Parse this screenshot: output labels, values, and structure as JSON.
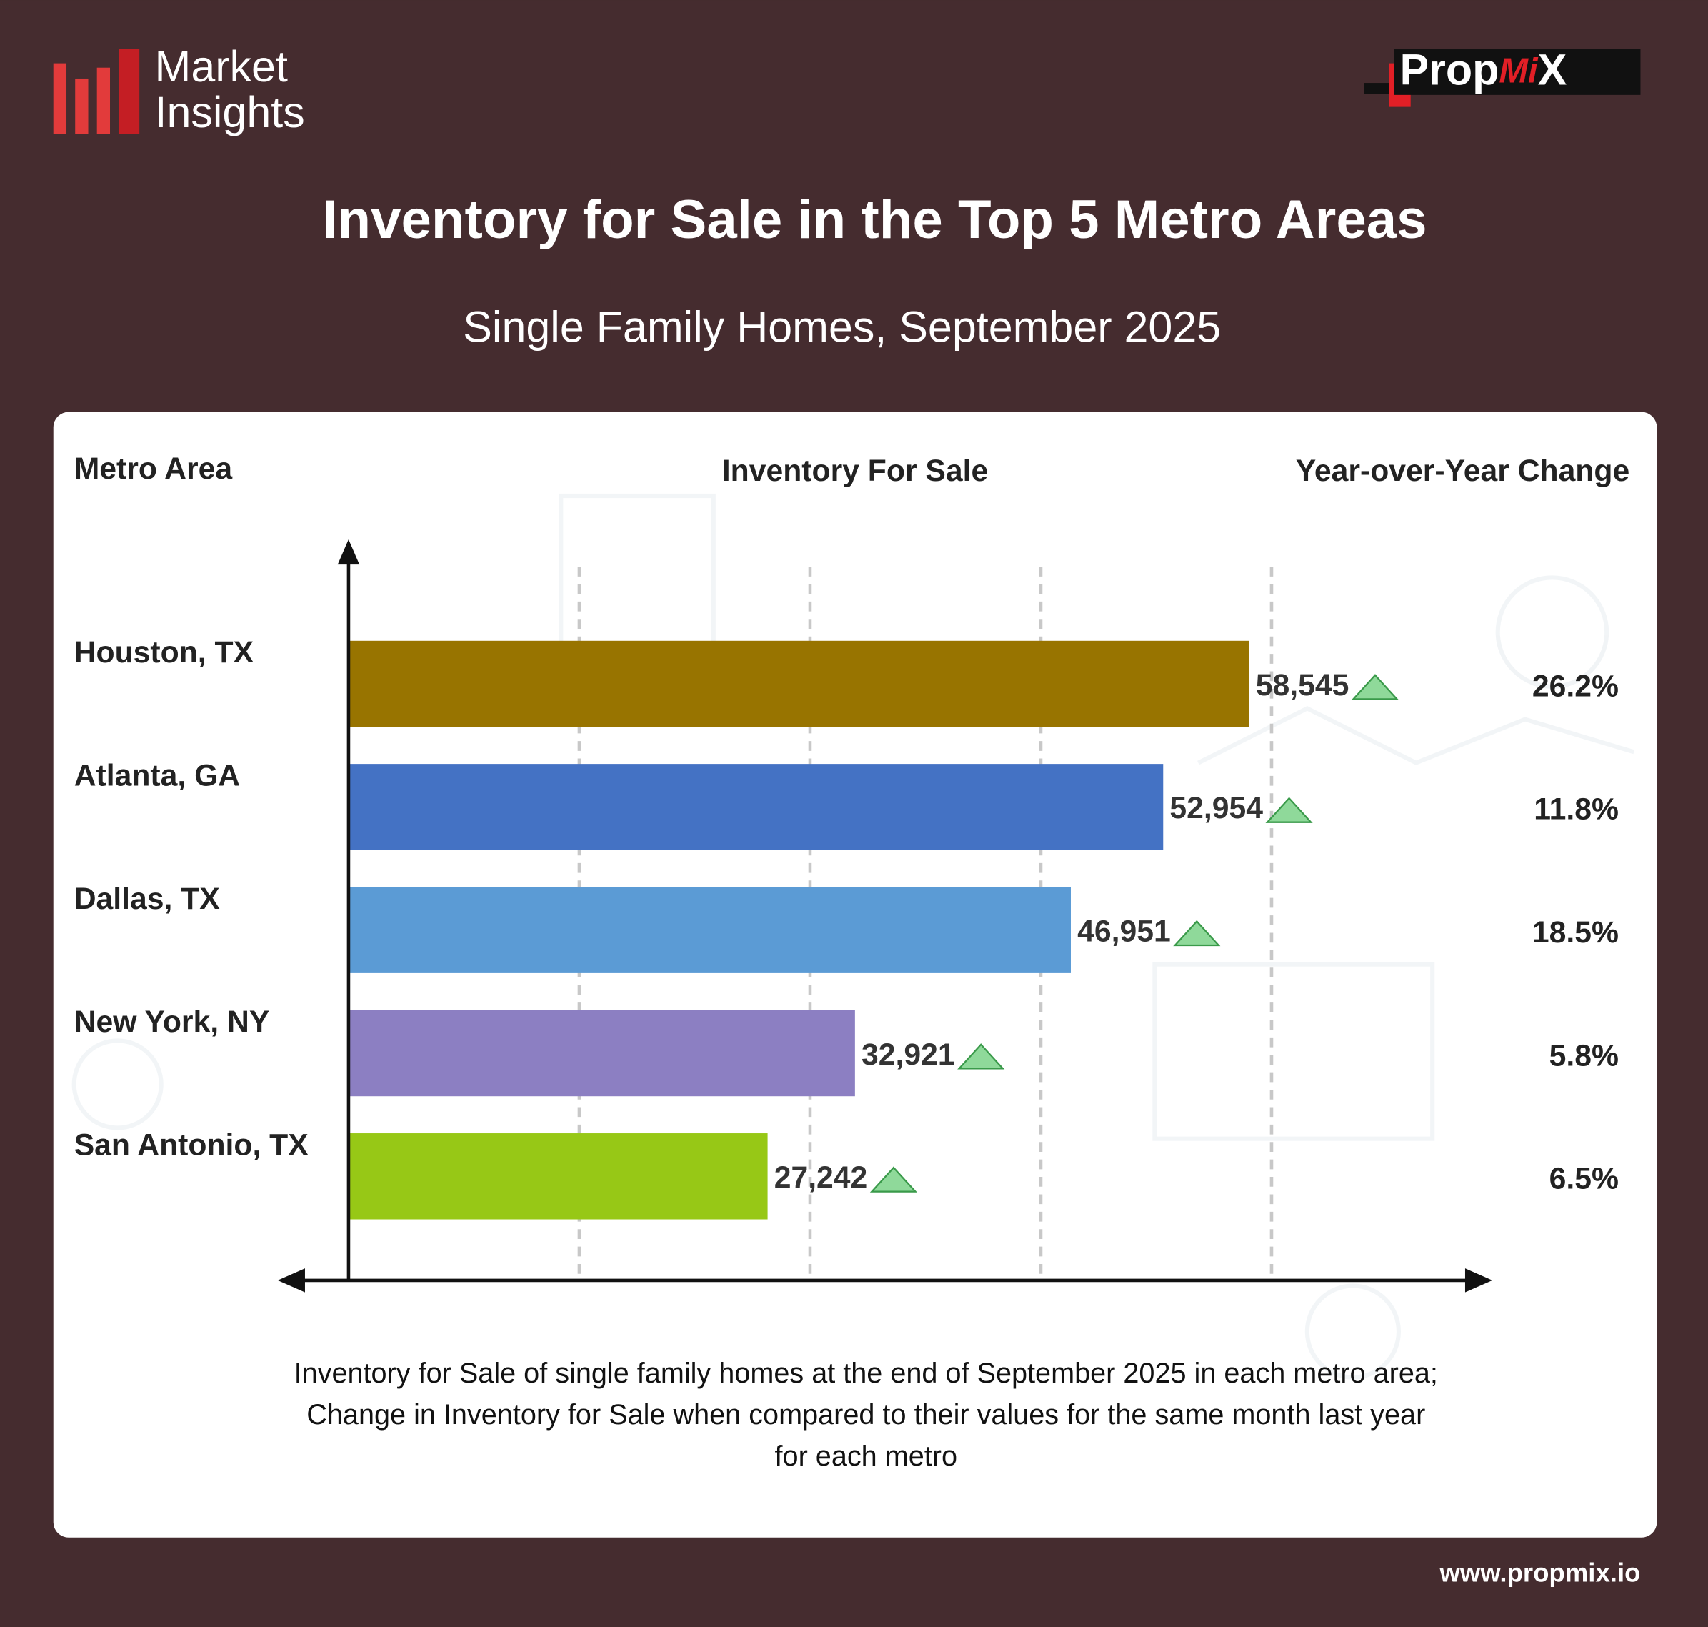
{
  "header": {
    "logo_lines": [
      "Market",
      "Insights"
    ],
    "brand_parts": [
      "Prop",
      "Mi",
      "X"
    ],
    "url": "www.propmix.io"
  },
  "chart_data": {
    "type": "hbar",
    "title": "Inventory for Sale in the Top 5 Metro Areas",
    "subtitle": "Single Family Homes, September 2025",
    "column_headers": [
      "Metro Area",
      "Inventory For Sale",
      "Year-over-Year Change"
    ],
    "categories": [
      "Houston, TX",
      "Atlanta, GA",
      "Dallas, TX",
      "New York, NY",
      "San Antonio, TX"
    ],
    "values": [
      58545,
      52954,
      46951,
      32921,
      27242
    ],
    "value_labels": [
      "58,545",
      "52,954",
      "46,951",
      "32,921",
      "27,242"
    ],
    "colors": [
      "#987400",
      "#4472c4",
      "#5b9bd5",
      "#8c7fc2",
      "#97c816"
    ],
    "yoy_change": {
      "values": [
        26.2,
        11.8,
        18.5,
        5.8,
        6.5
      ],
      "value_labels": [
        "26.2%",
        "11.8%",
        "18.5%",
        "5.8%",
        "6.5%"
      ],
      "up_color": "#8fd99a"
    },
    "xlim": [
      0,
      74000
    ],
    "xticks": [
      15000,
      30000,
      45000,
      60000
    ],
    "grid": true,
    "note": [
      "Inventory for Sale of single family homes at the end of September 2025 in each metro area;",
      "Change in Inventory for Sale when compared to their values for the same month last year",
      "for each metro"
    ]
  }
}
